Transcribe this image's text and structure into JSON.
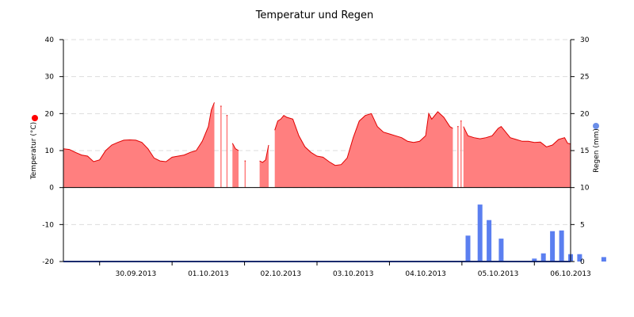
{
  "chart_data": {
    "type": "area",
    "title": "Temperatur und Regen",
    "colors": {
      "temperature_fill": "#ff7f7f",
      "temperature_line": "#e00000",
      "rain_bar": "#5b7ff0",
      "grid": "#dddddd",
      "legend_temp_dot": "#ff0000",
      "legend_rain_dot": "#6a8ee8"
    },
    "grid": true,
    "x_axis": {
      "start": "29.09.2013 12:00",
      "end": "06.10.2013 12:00",
      "tick_labels": [
        "30.09.2013",
        "01.10.2013",
        "02.10.2013",
        "03.10.2013",
        "04.10.2013",
        "05.10.2013",
        "06.10.2013"
      ]
    },
    "y_left": {
      "label": "Temperatur (°C)",
      "ylim": [
        -20,
        40
      ],
      "ticks": [
        "40",
        "30",
        "20",
        "10",
        "0",
        "-10",
        "-20"
      ]
    },
    "y_right": {
      "label": "Regen (mm)",
      "ylim": [
        0,
        30
      ],
      "ticks": [
        "30",
        "25",
        "20",
        "15",
        "10",
        "5",
        "0"
      ]
    },
    "series": [
      {
        "name": "Temperatur (°C)",
        "type": "area",
        "axis": "left",
        "points": [
          [
            "29.09.2013 12:00",
            10.5
          ],
          [
            "29.09.2013 14:00",
            10.3
          ],
          [
            "29.09.2013 16:00",
            9.5
          ],
          [
            "29.09.2013 18:00",
            8.8
          ],
          [
            "29.09.2013 20:00",
            8.5
          ],
          [
            "29.09.2013 22:00",
            7.0
          ],
          [
            "30.09.2013 00:00",
            7.5
          ],
          [
            "30.09.2013 02:00",
            10.0
          ],
          [
            "30.09.2013 04:00",
            11.5
          ],
          [
            "30.09.2013 06:00",
            12.2
          ],
          [
            "30.09.2013 08:00",
            12.8
          ],
          [
            "30.09.2013 10:00",
            12.9
          ],
          [
            "30.09.2013 12:00",
            12.8
          ],
          [
            "30.09.2013 14:00",
            12.2
          ],
          [
            "30.09.2013 16:00",
            10.5
          ],
          [
            "30.09.2013 18:00",
            8.0
          ],
          [
            "30.09.2013 20:00",
            7.2
          ],
          [
            "30.09.2013 22:00",
            7.0
          ],
          [
            "01.10.2013 00:00",
            8.2
          ],
          [
            "01.10.2013 02:00",
            8.5
          ],
          [
            "01.10.2013 04:00",
            8.8
          ],
          [
            "01.10.2013 06:00",
            9.5
          ],
          [
            "01.10.2013 08:00",
            10.0
          ],
          [
            "01.10.2013 10:00",
            12.5
          ],
          [
            "01.10.2013 12:00",
            16.5
          ],
          [
            "01.10.2013 13:00",
            21.0
          ],
          [
            "01.10.2013 14:00",
            23.0
          ],
          [
            "01.10.2013 15:00",
            null
          ],
          [
            "01.10.2013 16:00",
            22.0
          ],
          [
            "01.10.2013 17:00",
            null
          ],
          [
            "01.10.2013 18:00",
            19.5
          ],
          [
            "01.10.2013 19:00",
            null
          ],
          [
            "01.10.2013 20:00",
            12.0
          ],
          [
            "01.10.2013 21:00",
            10.5
          ],
          [
            "01.10.2013 22:00",
            10.0
          ],
          [
            "01.10.2013 23:00",
            null
          ],
          [
            "02.10.2013 00:00",
            7.2
          ],
          [
            "02.10.2013 00:30",
            null
          ],
          [
            "02.10.2013 05:00",
            7.2
          ],
          [
            "02.10.2013 06:00",
            6.8
          ],
          [
            "02.10.2013 07:00",
            7.5
          ],
          [
            "02.10.2013 08:00",
            11.5
          ],
          [
            "02.10.2013 09:00",
            null
          ],
          [
            "02.10.2013 10:00",
            15.5
          ],
          [
            "02.10.2013 11:00",
            18.0
          ],
          [
            "02.10.2013 12:00",
            18.5
          ],
          [
            "02.10.2013 13:00",
            19.5
          ],
          [
            "02.10.2013 14:00",
            19.0
          ],
          [
            "02.10.2013 16:00",
            18.5
          ],
          [
            "02.10.2013 18:00",
            14.0
          ],
          [
            "02.10.2013 20:00",
            11.0
          ],
          [
            "02.10.2013 22:00",
            9.5
          ],
          [
            "03.10.2013 00:00",
            8.5
          ],
          [
            "03.10.2013 02:00",
            8.2
          ],
          [
            "03.10.2013 04:00",
            7.0
          ],
          [
            "03.10.2013 06:00",
            6.0
          ],
          [
            "03.10.2013 08:00",
            6.2
          ],
          [
            "03.10.2013 10:00",
            8.0
          ],
          [
            "03.10.2013 12:00",
            13.5
          ],
          [
            "03.10.2013 14:00",
            18.0
          ],
          [
            "03.10.2013 16:00",
            19.5
          ],
          [
            "03.10.2013 18:00",
            20.0
          ],
          [
            "03.10.2013 20:00",
            16.5
          ],
          [
            "03.10.2013 22:00",
            15.0
          ],
          [
            "04.10.2013 00:00",
            14.5
          ],
          [
            "04.10.2013 02:00",
            14.0
          ],
          [
            "04.10.2013 04:00",
            13.5
          ],
          [
            "04.10.2013 06:00",
            12.5
          ],
          [
            "04.10.2013 08:00",
            12.2
          ],
          [
            "04.10.2013 10:00",
            12.5
          ],
          [
            "04.10.2013 12:00",
            14.0
          ],
          [
            "04.10.2013 13:00",
            20.0
          ],
          [
            "04.10.2013 14:00",
            18.5
          ],
          [
            "04.10.2013 16:00",
            20.5
          ],
          [
            "04.10.2013 18:00",
            19.0
          ],
          [
            "04.10.2013 20:00",
            16.5
          ],
          [
            "04.10.2013 21:00",
            16.0
          ],
          [
            "04.10.2013 22:00",
            null
          ],
          [
            "04.10.2013 22:30",
            16.5
          ],
          [
            "04.10.2013 23:00",
            null
          ],
          [
            "04.10.2013 23:30",
            18.0
          ],
          [
            "05.10.2013 00:00",
            null
          ],
          [
            "05.10.2013 00:30",
            16.5
          ],
          [
            "05.10.2013 02:00",
            14.0
          ],
          [
            "05.10.2013 04:00",
            13.5
          ],
          [
            "05.10.2013 06:00",
            13.2
          ],
          [
            "05.10.2013 08:00",
            13.5
          ],
          [
            "05.10.2013 10:00",
            14.0
          ],
          [
            "05.10.2013 12:00",
            16.0
          ],
          [
            "05.10.2013 13:00",
            16.5
          ],
          [
            "05.10.2013 14:00",
            15.5
          ],
          [
            "05.10.2013 16:00",
            13.5
          ],
          [
            "05.10.2013 18:00",
            13.0
          ],
          [
            "05.10.2013 20:00",
            12.5
          ],
          [
            "05.10.2013 22:00",
            12.5
          ],
          [
            "06.10.2013 00:00",
            12.2
          ],
          [
            "06.10.2013 02:00",
            12.3
          ],
          [
            "06.10.2013 04:00",
            11.0
          ],
          [
            "06.10.2013 06:00",
            11.5
          ],
          [
            "06.10.2013 08:00",
            13.0
          ],
          [
            "06.10.2013 10:00",
            13.5
          ],
          [
            "06.10.2013 11:00",
            12.0
          ],
          [
            "06.10.2013 12:00",
            11.8
          ]
        ]
      },
      {
        "name": "Regen (mm)",
        "type": "bar",
        "axis": "right",
        "points": [
          [
            "05.10.2013 02:00",
            3.5
          ],
          [
            "05.10.2013 06:00",
            7.7
          ],
          [
            "05.10.2013 09:00",
            5.6
          ],
          [
            "05.10.2013 13:00",
            3.1
          ],
          [
            "06.10.2013 00:00",
            0.4
          ],
          [
            "06.10.2013 03:00",
            1.1
          ],
          [
            "06.10.2013 06:00",
            4.1
          ],
          [
            "06.10.2013 09:00",
            4.2
          ],
          [
            "06.10.2013 12:00",
            1.0
          ],
          [
            "06.10.2013 15:00",
            1.0
          ],
          [
            "06.10.2013 23:00",
            0.6
          ]
        ]
      }
    ]
  }
}
